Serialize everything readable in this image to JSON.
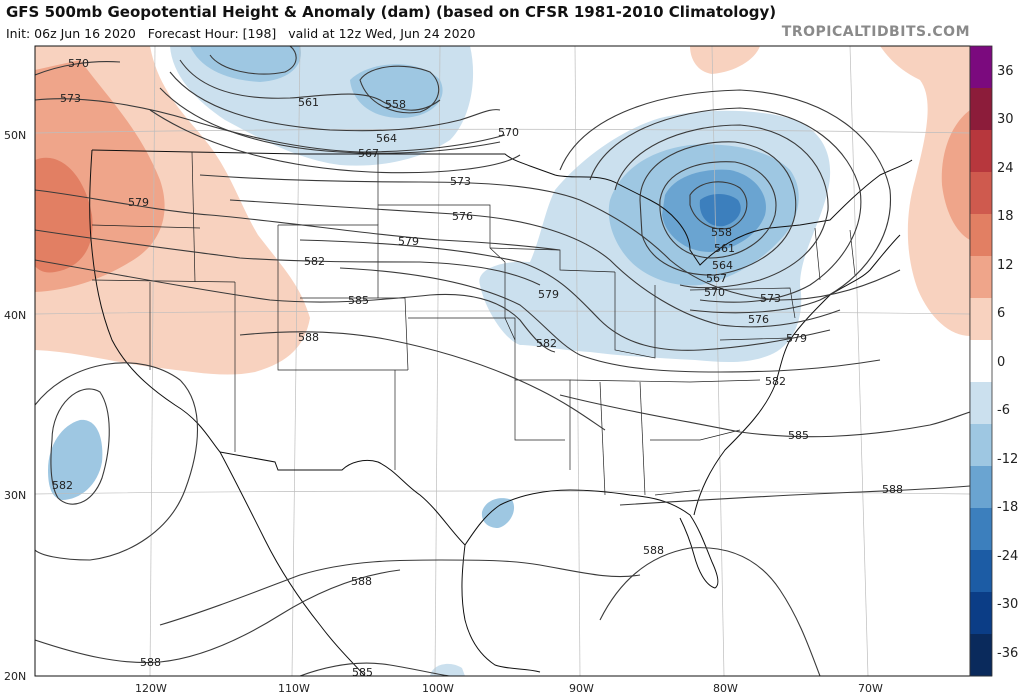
{
  "header": {
    "title": "GFS 500mb Geopotential Height & Anomaly (dam) (based on CFSR 1981-2010 Climatology)",
    "init_label": "Init: 06z Jun 16 2020",
    "forecast_label": "Forecast Hour: [198]",
    "valid_label": "valid at 12z Wed, Jun 24 2020",
    "watermark": "TROPICALTIDBITS.COM"
  },
  "map": {
    "longitude_labels": [
      "120W",
      "110W",
      "100W",
      "90W",
      "80W",
      "70W"
    ],
    "latitude_labels": [
      "50N",
      "40N",
      "30N",
      "20N"
    ],
    "contour_labels": [
      {
        "id": "c570-nw",
        "text": "570"
      },
      {
        "id": "c573-nw",
        "text": "573"
      },
      {
        "id": "c561-low",
        "text": "561"
      },
      {
        "id": "c558-low",
        "text": "558"
      },
      {
        "id": "c564-low",
        "text": "564"
      },
      {
        "id": "c567-low",
        "text": "567"
      },
      {
        "id": "c570-mid",
        "text": "570"
      },
      {
        "id": "c573-mid",
        "text": "573"
      },
      {
        "id": "c576-mid",
        "text": "576"
      },
      {
        "id": "c579-west",
        "text": "579"
      },
      {
        "id": "c579-mid",
        "text": "579"
      },
      {
        "id": "c582-mid",
        "text": "582"
      },
      {
        "id": "c585-mid",
        "text": "585"
      },
      {
        "id": "c588-mid",
        "text": "588"
      },
      {
        "id": "c579-ohio",
        "text": "579"
      },
      {
        "id": "c582-ohio",
        "text": "582"
      },
      {
        "id": "c558-gl",
        "text": "558"
      },
      {
        "id": "c561-gl",
        "text": "561"
      },
      {
        "id": "c564-gl",
        "text": "564"
      },
      {
        "id": "c567-gl",
        "text": "567"
      },
      {
        "id": "c570-gl",
        "text": "570"
      },
      {
        "id": "c573-gl",
        "text": "573"
      },
      {
        "id": "c576-gl",
        "text": "576"
      },
      {
        "id": "c579-gl",
        "text": "579"
      },
      {
        "id": "c582-east",
        "text": "582"
      },
      {
        "id": "c585-east",
        "text": "585"
      },
      {
        "id": "c588-atl",
        "text": "588"
      },
      {
        "id": "c588-gulf",
        "text": "588"
      },
      {
        "id": "c582-pac",
        "text": "582"
      },
      {
        "id": "c588-mex",
        "text": "588"
      },
      {
        "id": "c588-sw",
        "text": "588"
      },
      {
        "id": "c585-bottom",
        "text": "585"
      }
    ]
  },
  "colorbar": {
    "labels": [
      "36",
      "30",
      "24",
      "18",
      "12",
      "6",
      "0",
      "-6",
      "-12",
      "-18",
      "-24",
      "-30",
      "-36"
    ],
    "colors": [
      "#7b0a7e",
      "#8c1c3a",
      "#b7373d",
      "#cf5a4e",
      "#e27f63",
      "#efa58a",
      "#f8d2bf",
      "#ffffff",
      "#cbe0ee",
      "#9ec7e2",
      "#6aa4d1",
      "#3c7fbd",
      "#1c5ca5",
      "#0b3d86",
      "#0a2a5c"
    ]
  }
}
